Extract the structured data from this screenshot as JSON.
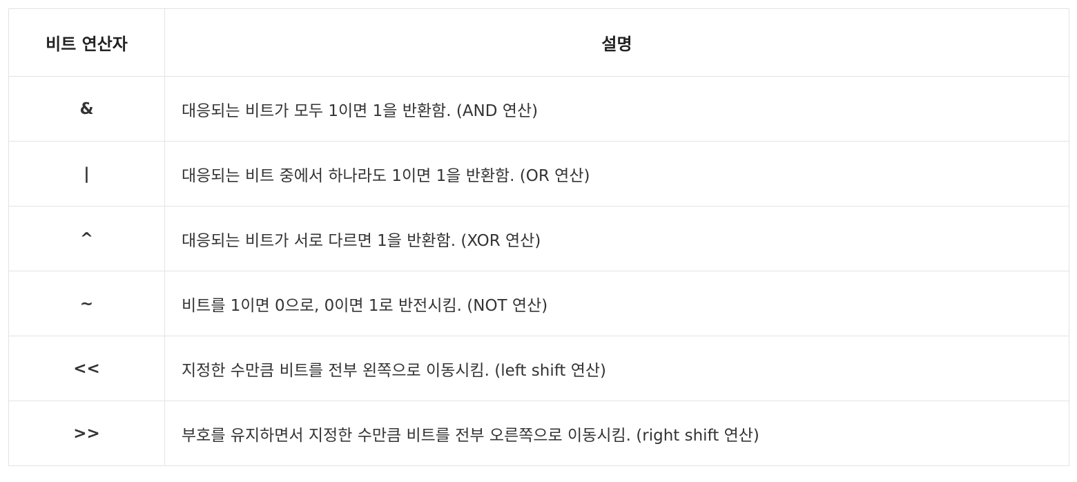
{
  "table": {
    "headers": [
      "비트 연산자",
      "설명"
    ],
    "rows": [
      {
        "operator": "&",
        "description": "대응되는 비트가 모두 1이면 1을 반환함. (AND 연산)"
      },
      {
        "operator": "|",
        "description": "대응되는 비트 중에서 하나라도 1이면 1을 반환함. (OR 연산)"
      },
      {
        "operator": "^",
        "description": "대응되는 비트가 서로 다르면 1을 반환함. (XOR 연산)"
      },
      {
        "operator": "~",
        "description": "비트를 1이면 0으로, 0이면 1로 반전시킴. (NOT 연산)"
      },
      {
        "operator": "<<",
        "description": "지정한 수만큼 비트를 전부 왼쪽으로 이동시킴. (left shift 연산)"
      },
      {
        "operator": ">>",
        "description": "부호를 유지하면서 지정한 수만큼 비트를 전부 오른쪽으로 이동시킴. (right shift 연산)"
      }
    ]
  },
  "colors": {
    "operator_text": "#7b2fbf",
    "border": "#e3e3e3"
  }
}
